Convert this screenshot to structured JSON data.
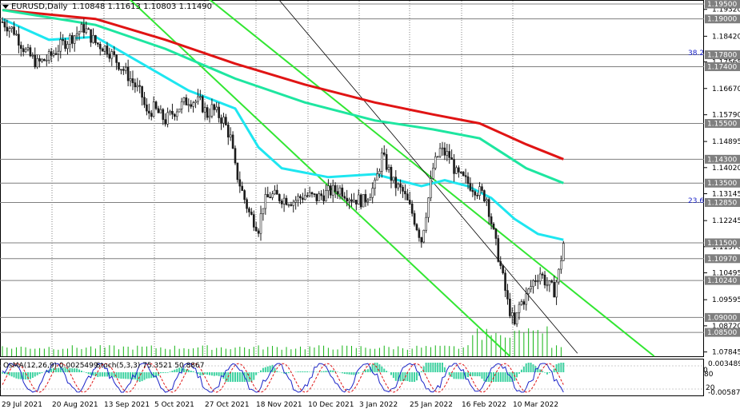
{
  "header": {
    "symbol": "EURUSD,Daily",
    "ohlc": "1.10848 1.11613 1.10803 1.11490"
  },
  "indicator_header": {
    "macd": "OsMA(12,26,9) 0.0025499",
    "stoch": "Stoch(5,3,3) 75.3521 50.8867"
  },
  "colors": {
    "ema_red": "#e01414",
    "ema_teal": "#1ee6a0",
    "ema_cyan": "#1ee6f0",
    "channel_green": "#32e632",
    "candle": "#1a1a1a",
    "level_bg": "#7f7f7f",
    "volume": "#14b414",
    "osma": "#3cd2a0",
    "stoch_main": "#1a23c8",
    "stoch_signal": "#e01414"
  },
  "chart_data": {
    "type": "candlestick",
    "price_ticks": [
      "1.19320",
      "1.18420",
      "1.17565",
      "1.16670",
      "1.15790",
      "1.14895",
      "1.14020",
      "1.13145",
      "1.12245",
      "1.11370",
      "1.10495",
      "1.09595",
      "1.08720",
      "1.07845"
    ],
    "price_levels": [
      "1.19500",
      "1.19000",
      "1.17800",
      "1.17400",
      "1.15500",
      "1.14300",
      "1.13500",
      "1.12850",
      "1.11500",
      "1.10970",
      "1.10240",
      "1.09000",
      "1.08500"
    ],
    "fib_labels": [
      "38.2",
      "23.6"
    ],
    "date_labels": [
      "29 Jul 2021",
      "20 Aug 2021",
      "13 Sep 2021",
      "5 Oct 2021",
      "27 Oct 2021",
      "18 Nov 2021",
      "10 Dec 2021",
      "3 Jan 2022",
      "25 Jan 2022",
      "16 Feb 2022",
      "10 Mar 2022"
    ],
    "osc_ticks": [
      "0.0034899",
      "20",
      "-0.0058711"
    ],
    "osc_labels": [
      "0",
      "80"
    ],
    "close_path": [
      [
        0,
        1.189
      ],
      [
        5,
        1.186
      ],
      [
        10,
        1.179
      ],
      [
        15,
        1.175
      ],
      [
        20,
        1.177
      ],
      [
        25,
        1.181
      ],
      [
        30,
        1.184
      ],
      [
        35,
        1.187
      ],
      [
        40,
        1.182
      ],
      [
        45,
        1.18
      ],
      [
        50,
        1.175
      ],
      [
        55,
        1.17
      ],
      [
        60,
        1.164
      ],
      [
        62,
        1.158
      ],
      [
        65,
        1.16
      ],
      [
        70,
        1.156
      ],
      [
        75,
        1.16
      ],
      [
        80,
        1.163
      ],
      [
        85,
        1.162
      ],
      [
        88,
        1.158
      ],
      [
        90,
        1.16
      ],
      [
        95,
        1.156
      ],
      [
        98,
        1.15
      ],
      [
        100,
        1.14
      ],
      [
        103,
        1.132
      ],
      [
        106,
        1.125
      ],
      [
        110,
        1.12
      ],
      [
        112,
        1.128
      ],
      [
        115,
        1.131
      ],
      [
        120,
        1.13
      ],
      [
        125,
        1.129
      ],
      [
        130,
        1.131
      ],
      [
        135,
        1.13
      ],
      [
        140,
        1.132
      ],
      [
        145,
        1.133
      ],
      [
        150,
        1.13
      ],
      [
        155,
        1.129
      ],
      [
        160,
        1.134
      ],
      [
        163,
        1.144
      ],
      [
        165,
        1.141
      ],
      [
        168,
        1.135
      ],
      [
        172,
        1.132
      ],
      [
        176,
        1.125
      ],
      [
        180,
        1.116
      ],
      [
        183,
        1.13
      ],
      [
        185,
        1.14
      ],
      [
        188,
        1.146
      ],
      [
        192,
        1.144
      ],
      [
        195,
        1.138
      ],
      [
        200,
        1.135
      ],
      [
        205,
        1.132
      ],
      [
        208,
        1.13
      ],
      [
        211,
        1.118
      ],
      [
        214,
        1.107
      ],
      [
        217,
        1.095
      ],
      [
        220,
        1.087
      ],
      [
        222,
        1.094
      ],
      [
        225,
        1.097
      ],
      [
        228,
        1.102
      ],
      [
        231,
        1.105
      ],
      [
        234,
        1.101
      ],
      [
        237,
        1.099
      ],
      [
        239,
        1.105
      ],
      [
        241,
        1.1149
      ]
    ],
    "ema_red": [
      [
        0,
        1.193
      ],
      [
        40,
        1.19
      ],
      [
        70,
        1.183
      ],
      [
        100,
        1.175
      ],
      [
        130,
        1.168
      ],
      [
        160,
        1.162
      ],
      [
        185,
        1.158
      ],
      [
        205,
        1.155
      ],
      [
        225,
        1.148
      ],
      [
        241,
        1.143
      ]
    ],
    "ema_teal": [
      [
        0,
        1.193
      ],
      [
        40,
        1.188
      ],
      [
        70,
        1.18
      ],
      [
        100,
        1.17
      ],
      [
        130,
        1.162
      ],
      [
        160,
        1.156
      ],
      [
        185,
        1.153
      ],
      [
        205,
        1.15
      ],
      [
        225,
        1.14
      ],
      [
        241,
        1.135
      ]
    ],
    "ema_cyan": [
      [
        0,
        1.19
      ],
      [
        20,
        1.183
      ],
      [
        40,
        1.184
      ],
      [
        60,
        1.175
      ],
      [
        80,
        1.166
      ],
      [
        100,
        1.16
      ],
      [
        110,
        1.147
      ],
      [
        120,
        1.14
      ],
      [
        140,
        1.137
      ],
      [
        160,
        1.138
      ],
      [
        180,
        1.134
      ],
      [
        190,
        1.136
      ],
      [
        200,
        1.134
      ],
      [
        210,
        1.13
      ],
      [
        220,
        1.123
      ],
      [
        230,
        1.118
      ],
      [
        241,
        1.116
      ]
    ],
    "channel_upper": [
      [
        85,
        1.199
      ],
      [
        280,
        1.077
      ]
    ],
    "channel_lower": [
      [
        50,
        1.2
      ],
      [
        218,
        1.077
      ]
    ],
    "thin_trend": [
      [
        116,
        1.199
      ],
      [
        247,
        1.078
      ]
    ],
    "xlabel": "",
    "ylabel": "",
    "bars": 241
  }
}
